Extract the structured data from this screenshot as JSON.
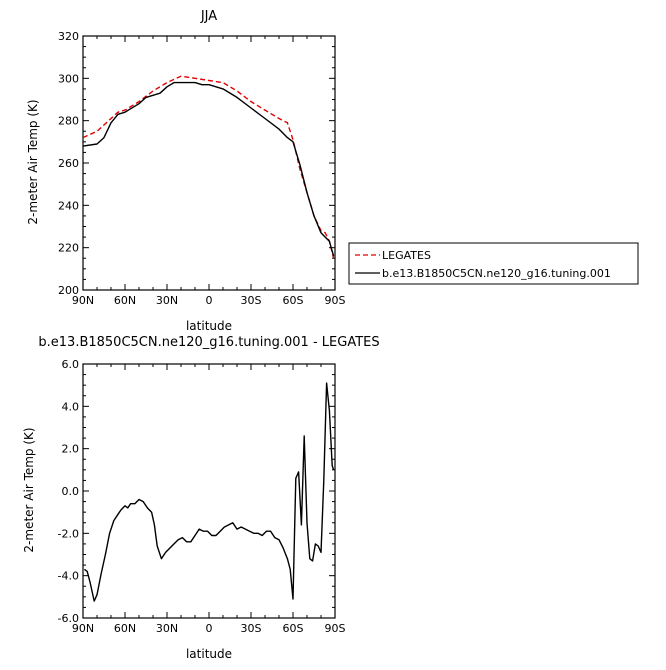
{
  "chart_data": [
    {
      "type": "line",
      "title": "JJA",
      "xlabel": "latitude",
      "ylabel": "2-meter Air Temp (K)",
      "xlim": [
        90,
        -90
      ],
      "ylim": [
        200,
        320
      ],
      "x_ticks": [
        90,
        60,
        30,
        0,
        -30,
        -60,
        -90
      ],
      "x_tick_labels": [
        "90N",
        "60N",
        "30N",
        "0",
        "30S",
        "60S",
        "90S"
      ],
      "y_ticks": [
        200,
        220,
        240,
        260,
        280,
        300,
        320
      ],
      "y_tick_labels": [
        "200",
        "220",
        "240",
        "260",
        "280",
        "300",
        "320"
      ],
      "legend_position": "right-bottom",
      "series": [
        {
          "name": "LEGATES",
          "color": "#e00000",
          "dash": "dashed",
          "x": [
            90,
            80,
            70,
            65,
            60,
            50,
            40,
            30,
            20,
            10,
            0,
            -10,
            -20,
            -30,
            -40,
            -50,
            -56,
            -60,
            -65,
            -70,
            -75,
            -80,
            -83,
            -86,
            -89
          ],
          "y": [
            272,
            275,
            281,
            284,
            285,
            289,
            294,
            298,
            301,
            300,
            299,
            298,
            294,
            289,
            285,
            281,
            279,
            271,
            257,
            246,
            235,
            228,
            227,
            223,
            215
          ]
        },
        {
          "name": "b.e13.B1850C5CN.ne120_g16.tuning.001",
          "color": "#000000",
          "dash": "solid",
          "x": [
            90,
            80,
            75,
            70,
            65,
            60,
            50,
            45,
            40,
            35,
            30,
            25,
            20,
            10,
            5,
            0,
            -10,
            -20,
            -30,
            -40,
            -50,
            -56,
            -60,
            -65,
            -70,
            -75,
            -80,
            -83,
            -86,
            -89
          ],
          "y": [
            268,
            269,
            272,
            279,
            283,
            284,
            288,
            291,
            292,
            293,
            296,
            298,
            298,
            298,
            297,
            297,
            295,
            291,
            286,
            281,
            276,
            272,
            270,
            259,
            246,
            235,
            227,
            225,
            223,
            216
          ]
        }
      ]
    },
    {
      "type": "line",
      "title": "b.e13.B1850C5CN.ne120_g16.tuning.001  -  LEGATES",
      "xlabel": "latitude",
      "ylabel": "2-meter Air Temp (K)",
      "xlim": [
        90,
        -90
      ],
      "ylim": [
        -6,
        6
      ],
      "x_ticks": [
        90,
        60,
        30,
        0,
        -30,
        -60,
        -90
      ],
      "x_tick_labels": [
        "90N",
        "60N",
        "30N",
        "0",
        "30S",
        "60S",
        "90S"
      ],
      "y_ticks": [
        -6,
        -4,
        -2,
        0,
        2,
        4,
        6
      ],
      "y_tick_labels": [
        "-6.0",
        "-4.0",
        "-2.0",
        "0.0",
        "2.0",
        "4.0",
        "6.0"
      ],
      "series": [
        {
          "color": "#000000",
          "dash": "solid",
          "x": [
            89,
            87,
            85,
            82,
            80,
            77,
            74,
            71,
            68,
            65,
            63,
            60,
            58,
            56,
            53,
            50,
            47,
            44,
            41,
            39,
            37,
            34,
            31,
            28,
            25,
            22,
            19,
            16,
            13,
            10,
            7,
            4,
            1,
            -2,
            -5,
            -8,
            -11,
            -14,
            -17,
            -20,
            -23,
            -26,
            -29,
            -32,
            -35,
            -38,
            -41,
            -44,
            -47,
            -50,
            -53,
            -56,
            -58,
            -60,
            -62,
            -64,
            -66,
            -68,
            -70,
            -72,
            -74,
            -76,
            -78,
            -80,
            -82,
            -84,
            -86,
            -88,
            -89
          ],
          "y": [
            -3.7,
            -3.8,
            -4.3,
            -5.2,
            -4.9,
            -3.9,
            -3.0,
            -2.0,
            -1.4,
            -1.1,
            -0.9,
            -0.7,
            -0.8,
            -0.6,
            -0.6,
            -0.4,
            -0.5,
            -0.8,
            -1.0,
            -1.6,
            -2.6,
            -3.2,
            -2.9,
            -2.7,
            -2.5,
            -2.3,
            -2.2,
            -2.4,
            -2.4,
            -2.1,
            -1.8,
            -1.9,
            -1.9,
            -2.1,
            -2.1,
            -1.9,
            -1.7,
            -1.6,
            -1.5,
            -1.8,
            -1.7,
            -1.8,
            -1.9,
            -2.0,
            -2.0,
            -2.1,
            -1.9,
            -1.9,
            -2.2,
            -2.3,
            -2.7,
            -3.2,
            -3.7,
            -5.1,
            0.6,
            0.9,
            -1.6,
            2.6,
            -1.5,
            -3.2,
            -3.3,
            -2.5,
            -2.6,
            -2.9,
            0.5,
            5.1,
            3.8,
            1.2,
            1.0
          ]
        }
      ]
    }
  ]
}
